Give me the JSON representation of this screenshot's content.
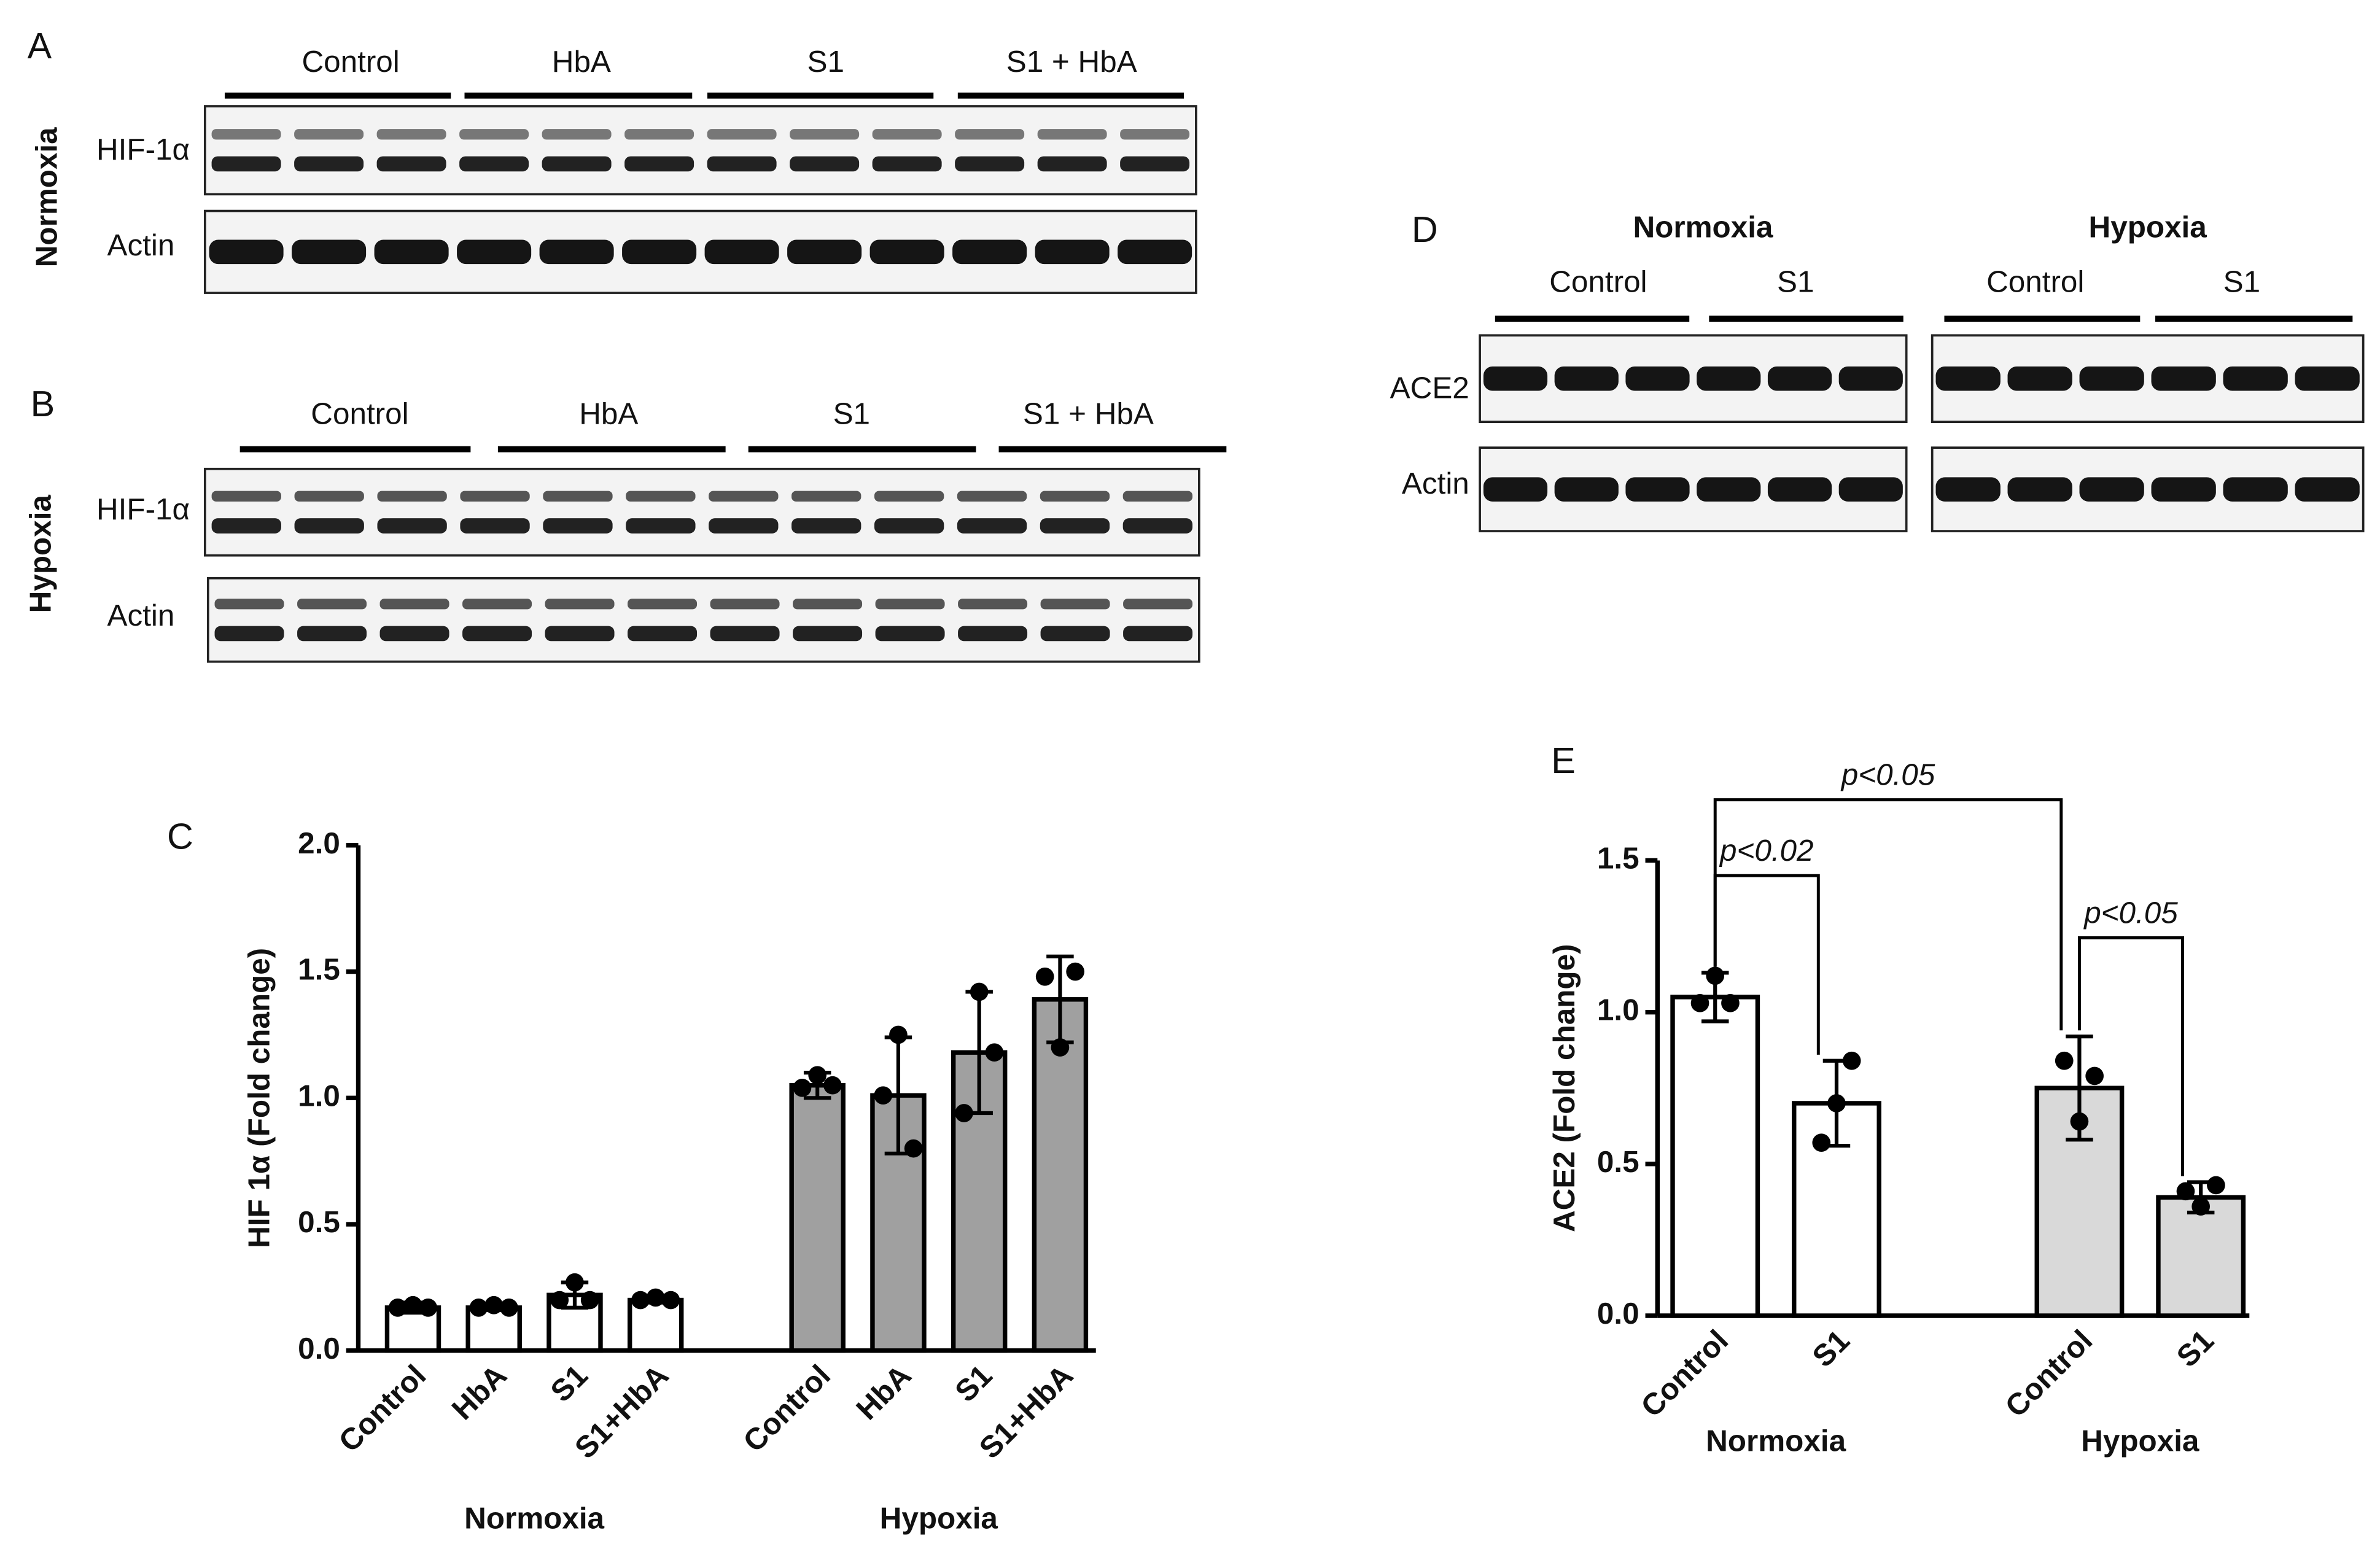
{
  "panels": {
    "A": {
      "label": "A",
      "condition": "Normoxia",
      "groups": [
        "Control",
        "HbA",
        "S1",
        "S1 + HbA"
      ],
      "rows": [
        "HIF-1α",
        "Actin"
      ]
    },
    "B": {
      "label": "B",
      "condition": "Hypoxia",
      "groups": [
        "Control",
        "HbA",
        "S1",
        "S1 + HbA"
      ],
      "rows": [
        "HIF-1α",
        "Actin"
      ]
    },
    "D": {
      "label": "D",
      "rows": [
        "ACE2",
        "Actin"
      ],
      "sections": [
        {
          "title": "Normoxia",
          "groups": [
            "Control",
            "S1"
          ]
        },
        {
          "title": "Hypoxia",
          "groups": [
            "Control",
            "S1"
          ]
        }
      ]
    }
  },
  "chart_data": [
    {
      "type": "bar",
      "label": "C",
      "ylabel": "HIF 1α (Fold change)",
      "ylim": [
        0,
        2
      ],
      "yticks": [
        {
          "value": 0,
          "label": "0.0"
        },
        {
          "value": 0.5,
          "label": "0.5"
        },
        {
          "value": 1,
          "label": "1.0"
        },
        {
          "value": 1.5,
          "label": "1.5"
        },
        {
          "value": 2,
          "label": "2.0"
        }
      ],
      "groups": [
        {
          "name": "Normoxia",
          "color": "#ffffff",
          "categories": [
            "Control",
            "HbA",
            "S1",
            "S1+HbA"
          ],
          "values": [
            0.17,
            0.17,
            0.22,
            0.2
          ],
          "errors": [
            0.02,
            0.01,
            0.05,
            0.01
          ],
          "points": [
            [
              0.17,
              0.18,
              0.17
            ],
            [
              0.17,
              0.18,
              0.17
            ],
            [
              0.2,
              0.27,
              0.2
            ],
            [
              0.2,
              0.21,
              0.2
            ]
          ]
        },
        {
          "name": "Hypoxia",
          "color": "#a0a0a0",
          "categories": [
            "Control",
            "HbA",
            "S1",
            "S1+HbA"
          ],
          "values": [
            1.05,
            1.01,
            1.18,
            1.39
          ],
          "errors": [
            0.05,
            0.23,
            0.24,
            0.17
          ],
          "points": [
            [
              1.04,
              1.09,
              1.05
            ],
            [
              1.01,
              1.25,
              0.8
            ],
            [
              0.94,
              1.42,
              1.18
            ],
            [
              1.48,
              1.2,
              1.5
            ]
          ]
        }
      ]
    },
    {
      "type": "bar",
      "label": "E",
      "ylabel": "ACE2 (Fold change)",
      "ylim": [
        0,
        1.5
      ],
      "yticks": [
        {
          "value": 0,
          "label": "0.0"
        },
        {
          "value": 0.5,
          "label": "0.5"
        },
        {
          "value": 1,
          "label": "1.0"
        },
        {
          "value": 1.5,
          "label": "1.5"
        }
      ],
      "annotations": [
        "p<0.05",
        "p<0.02",
        "p<0.05"
      ],
      "groups": [
        {
          "name": "Normoxia",
          "color": "#ffffff",
          "categories": [
            "Control",
            "S1"
          ],
          "values": [
            1.05,
            0.7
          ],
          "errors": [
            0.08,
            0.14
          ],
          "points": [
            [
              1.03,
              1.12,
              1.03
            ],
            [
              0.57,
              0.7,
              0.84
            ]
          ]
        },
        {
          "name": "Hypoxia",
          "color": "#d9d9d9",
          "categories": [
            "Control",
            "S1"
          ],
          "values": [
            0.75,
            0.39
          ],
          "errors": [
            0.17,
            0.05
          ],
          "points": [
            [
              0.84,
              0.64,
              0.79
            ],
            [
              0.41,
              0.36,
              0.43
            ]
          ]
        }
      ]
    }
  ]
}
